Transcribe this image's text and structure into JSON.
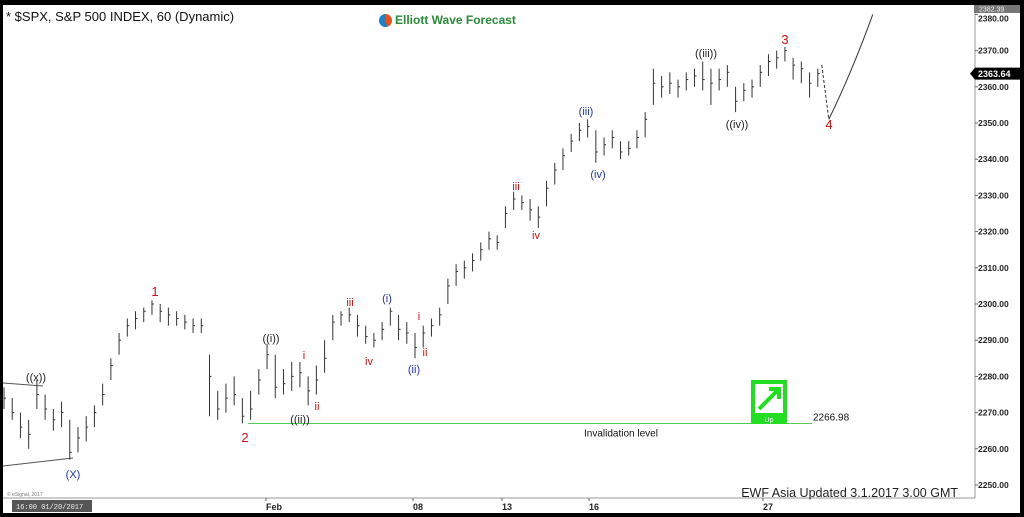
{
  "header": {
    "title": "* $SPX, S&P 500 INDEX, 60 (Dynamic)",
    "brand": "Elliott Wave Forecast"
  },
  "footer": {
    "update_note": "EWF Asia Updated 3.1.2017 3.00 GMT",
    "copyright": "© eSignal, 2017",
    "start_time": "16:00 01/20/2017"
  },
  "chart_data": {
    "type": "ohlc-bar",
    "title": "* $SPX, S&P 500 INDEX, 60 (Dynamic)",
    "ylim": [
      2246,
      2383
    ],
    "y_ticks": [
      "2250.00",
      "2260.00",
      "2270.00",
      "2280.00",
      "2290.00",
      "2300.00",
      "2310.00",
      "2320.00",
      "2330.00",
      "2340.00",
      "2350.00",
      "2360.00",
      "2370.00",
      "2380.00"
    ],
    "x_ticks": [
      "Feb",
      "08",
      "13",
      "16",
      "27"
    ],
    "grid": false,
    "last_price": "2363.64",
    "high_marker": "2382.39",
    "bar_fields": [
      "high",
      "low",
      "close"
    ],
    "bars": [
      [
        2277,
        2271,
        2274
      ],
      [
        2274,
        2268,
        2270
      ],
      [
        2270,
        2263,
        2266
      ],
      [
        2268,
        2260,
        2264
      ],
      [
        2279,
        2271,
        2275
      ],
      [
        2275,
        2268,
        2271
      ],
      [
        2271,
        2265,
        2268
      ],
      [
        2273,
        2266,
        2270
      ],
      [
        2268,
        2257,
        2259
      ],
      [
        2266,
        2259,
        2263
      ],
      [
        2269,
        2262,
        2266
      ],
      [
        2272,
        2266,
        2270
      ],
      [
        2278,
        2272,
        2275
      ],
      [
        2285,
        2279,
        2283
      ],
      [
        2292,
        2286,
        2290
      ],
      [
        2296,
        2291,
        2294
      ],
      [
        2298,
        2293,
        2296
      ],
      [
        2299,
        2295,
        2298
      ],
      [
        2301,
        2297,
        2300
      ],
      [
        2300,
        2295,
        2298
      ],
      [
        2299,
        2294,
        2297
      ],
      [
        2298,
        2294,
        2296
      ],
      [
        2297,
        2293,
        2295
      ],
      [
        2296,
        2292,
        2294
      ],
      [
        2296,
        2292,
        2294
      ],
      [
        2286,
        2269,
        2280
      ],
      [
        2276,
        2268,
        2271
      ],
      [
        2278,
        2270,
        2274
      ],
      [
        2280,
        2272,
        2275
      ],
      [
        2274,
        2267,
        2269
      ],
      [
        2276,
        2268,
        2271
      ],
      [
        2282,
        2275,
        2279
      ],
      [
        2289,
        2282,
        2286
      ],
      [
        2286,
        2274,
        2277
      ],
      [
        2282,
        2275,
        2278
      ],
      [
        2284,
        2276,
        2280
      ],
      [
        2284,
        2277,
        2281
      ],
      [
        2280,
        2272,
        2276
      ],
      [
        2283,
        2275,
        2279
      ],
      [
        2290,
        2281,
        2285
      ],
      [
        2297,
        2290,
        2295
      ],
      [
        2298,
        2294,
        2297
      ],
      [
        2299,
        2295,
        2297
      ],
      [
        2297,
        2291,
        2294
      ],
      [
        2294,
        2289,
        2291
      ],
      [
        2292,
        2288,
        2290
      ],
      [
        2295,
        2290,
        2293
      ],
      [
        2299,
        2294,
        2298
      ],
      [
        2297,
        2290,
        2293
      ],
      [
        2295,
        2289,
        2292
      ],
      [
        2292,
        2285,
        2288
      ],
      [
        2294,
        2288,
        2292
      ],
      [
        2296,
        2291,
        2294
      ],
      [
        2299,
        2294,
        2297
      ],
      [
        2307,
        2300,
        2305
      ],
      [
        2311,
        2305,
        2309
      ],
      [
        2312,
        2307,
        2310
      ],
      [
        2314,
        2309,
        2312
      ],
      [
        2317,
        2312,
        2315
      ],
      [
        2320,
        2315,
        2318
      ],
      [
        2319,
        2315,
        2317
      ],
      [
        2327,
        2321,
        2325
      ],
      [
        2331,
        2326,
        2329
      ],
      [
        2330,
        2326,
        2328
      ],
      [
        2329,
        2323,
        2326
      ],
      [
        2327,
        2321,
        2324
      ],
      [
        2334,
        2327,
        2332
      ],
      [
        2339,
        2333,
        2337
      ],
      [
        2343,
        2337,
        2341
      ],
      [
        2347,
        2342,
        2345
      ],
      [
        2350,
        2345,
        2348
      ],
      [
        2351,
        2346,
        2349
      ],
      [
        2348,
        2339,
        2342
      ],
      [
        2346,
        2341,
        2344
      ],
      [
        2348,
        2343,
        2346
      ],
      [
        2345,
        2340,
        2342
      ],
      [
        2345,
        2341,
        2343
      ],
      [
        2348,
        2343,
        2346
      ],
      [
        2353,
        2346,
        2351
      ],
      [
        2365,
        2355,
        2361
      ],
      [
        2363,
        2357,
        2360
      ],
      [
        2364,
        2358,
        2361
      ],
      [
        2362,
        2357,
        2360
      ],
      [
        2364,
        2359,
        2362
      ],
      [
        2365,
        2360,
        2363
      ],
      [
        2367,
        2359,
        2362
      ],
      [
        2365,
        2355,
        2361
      ],
      [
        2365,
        2359,
        2362
      ],
      [
        2366,
        2360,
        2364
      ],
      [
        2360,
        2353,
        2356
      ],
      [
        2361,
        2356,
        2359
      ],
      [
        2362,
        2357,
        2360
      ],
      [
        2366,
        2360,
        2364
      ],
      [
        2369,
        2363,
        2367
      ],
      [
        2370,
        2365,
        2368
      ],
      [
        2371,
        2367,
        2370
      ],
      [
        2368,
        2362,
        2366
      ],
      [
        2367,
        2361,
        2365
      ],
      [
        2364,
        2357,
        2361
      ],
      [
        2365,
        2360,
        2363.64
      ]
    ],
    "projection": {
      "wave_4_target": 2351,
      "next_target": 2380
    },
    "invalidation": {
      "value": "2266.98",
      "label": "Invalidation level"
    },
    "signal": {
      "label": "Up",
      "color": "#22dd22"
    },
    "wave_labels": [
      {
        "text": "((x))",
        "color": "#222222"
      },
      {
        "text": "(X)",
        "color": "#2233aa"
      },
      {
        "text": "1",
        "color": "#cc1111"
      },
      {
        "text": "2",
        "color": "#cc1111"
      },
      {
        "text": "((i))",
        "color": "#222222"
      },
      {
        "text": "((ii))",
        "color": "#222222"
      },
      {
        "text": "i",
        "color": "#cc1111"
      },
      {
        "text": "ii",
        "color": "#cc1111"
      },
      {
        "text": "iii",
        "color": "#cc1111"
      },
      {
        "text": "iv",
        "color": "#cc1111"
      },
      {
        "text": "(i)",
        "color": "#2233aa"
      },
      {
        "text": "(ii)",
        "color": "#2233aa"
      },
      {
        "text": "i",
        "color": "#cc1111"
      },
      {
        "text": "ii",
        "color": "#cc1111"
      },
      {
        "text": "iii",
        "color": "#cc1111"
      },
      {
        "text": "iv",
        "color": "#cc1111"
      },
      {
        "text": "(iii)",
        "color": "#2233aa"
      },
      {
        "text": "(iv)",
        "color": "#2233aa"
      },
      {
        "text": "((iii))",
        "color": "#222222"
      },
      {
        "text": "((iv))",
        "color": "#222222"
      },
      {
        "text": "3",
        "color": "#cc1111"
      },
      {
        "text": "4",
        "color": "#cc1111"
      }
    ],
    "colors": {
      "bars": "#333333",
      "invalidation_line": "#55cc55",
      "last_price_bg": "#000000"
    }
  }
}
